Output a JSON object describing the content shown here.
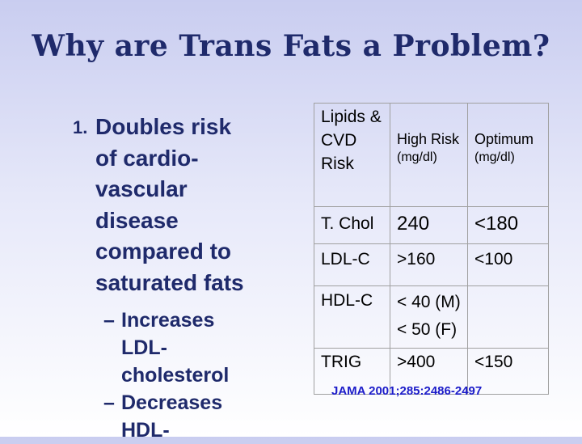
{
  "slide": {
    "title": "Why are Trans Fats a Problem?",
    "bullet_number": "1.",
    "bullet_lines": [
      "Doubles risk",
      "of cardio-",
      "vascular",
      "disease",
      "compared to",
      "saturated fats"
    ],
    "sub_dash": "–",
    "sub_items": [
      {
        "lines": [
          "Increases",
          "LDL-",
          "cholesterol"
        ]
      },
      {
        "lines": [
          "Decreases",
          "HDL-"
        ]
      }
    ]
  },
  "table": {
    "header": {
      "lipids": [
        "Lipids &",
        "CVD",
        "Risk"
      ],
      "high_risk": [
        "High Risk",
        "(mg/dl)"
      ],
      "optimum": [
        "Optimum",
        "(mg/dl)"
      ]
    },
    "rows": [
      {
        "name": "T. Chol",
        "high": [
          "240"
        ],
        "optimum": "<180"
      },
      {
        "name": "LDL-C",
        "high": [
          ">160"
        ],
        "optimum": "<100"
      },
      {
        "name": "HDL-C",
        "high": [
          "< 40 (M)",
          "< 50 (F)"
        ],
        "optimum": ""
      },
      {
        "name": "TRIG",
        "high": [
          ">400"
        ],
        "optimum": "<150"
      }
    ]
  },
  "citation": "JAMA 2001;285:2486-2497"
}
